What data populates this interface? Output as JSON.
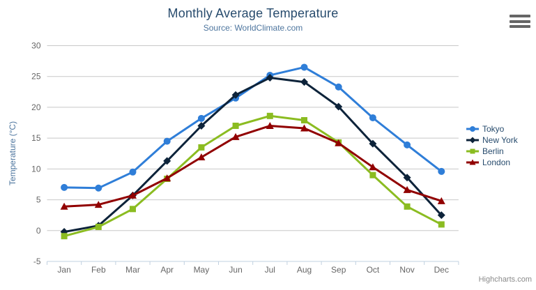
{
  "icons": {
    "context_menu": "hamburger-menu-icon"
  },
  "credits": {
    "label": "Highcharts.com"
  },
  "colors": {
    "background": "#ffffff",
    "title": "#274b6d",
    "subtitle": "#4d759e",
    "axis_title": "#4d759e",
    "tick_label": "#666666",
    "gridline": "#c8c8c8",
    "axis_line": "#c0d0e0",
    "legend_text": "#274b6d",
    "credits_text": "#8a8a8a",
    "menu_icon": "#666666"
  },
  "chart_data": {
    "type": "line",
    "title": "Monthly Average Temperature",
    "subtitle": "Source: WorldClimate.com",
    "xlabel": "",
    "ylabel": "Temperature (°C)",
    "ylim": [
      -5,
      30
    ],
    "yticks": [
      -5,
      0,
      5,
      10,
      15,
      20,
      25,
      30
    ],
    "grid": true,
    "legend_position": "right",
    "categories": [
      "Jan",
      "Feb",
      "Mar",
      "Apr",
      "May",
      "Jun",
      "Jul",
      "Aug",
      "Sep",
      "Oct",
      "Nov",
      "Dec"
    ],
    "series": [
      {
        "name": "Tokyo",
        "color": "#2f7ed8",
        "marker": "circle",
        "values": [
          7.0,
          6.9,
          9.5,
          14.5,
          18.2,
          21.5,
          25.2,
          26.5,
          23.3,
          18.3,
          13.9,
          9.6
        ]
      },
      {
        "name": "New York",
        "color": "#0d233a",
        "marker": "diamond",
        "values": [
          -0.2,
          0.8,
          5.7,
          11.3,
          17.0,
          22.0,
          24.8,
          24.1,
          20.1,
          14.1,
          8.6,
          2.5
        ]
      },
      {
        "name": "Berlin",
        "color": "#8bbc21",
        "marker": "square",
        "values": [
          -0.9,
          0.6,
          3.5,
          8.4,
          13.5,
          17.0,
          18.6,
          17.9,
          14.3,
          9.0,
          3.9,
          1.0
        ]
      },
      {
        "name": "London",
        "color": "#910000",
        "marker": "triangle",
        "values": [
          3.9,
          4.2,
          5.7,
          8.5,
          11.9,
          15.2,
          17.0,
          16.6,
          14.2,
          10.3,
          6.6,
          4.8
        ]
      }
    ]
  }
}
